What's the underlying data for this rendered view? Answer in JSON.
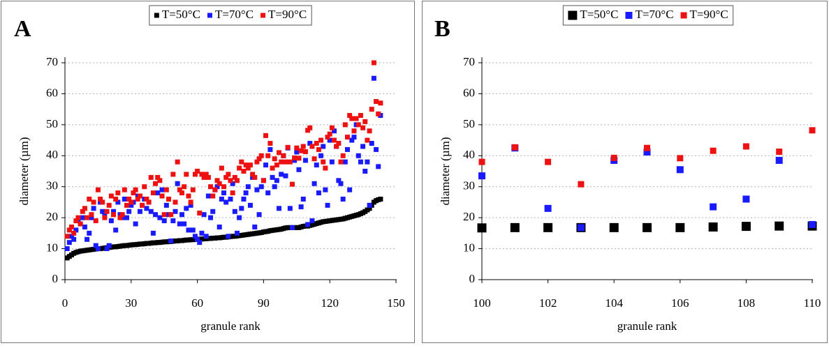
{
  "chart_data": [
    {
      "type": "scatter",
      "panel_label": "A",
      "xlabel": "granule rank",
      "ylabel": "diameter (µm)",
      "xlim": [
        0,
        150
      ],
      "xticks": [
        0,
        30,
        60,
        90,
        120,
        150
      ],
      "ylim": [
        0,
        70
      ],
      "yticks": [
        0,
        10,
        20,
        30,
        40,
        50,
        60,
        70
      ],
      "grid": true,
      "legend": "top",
      "x": [
        1,
        2,
        3,
        4,
        5,
        6,
        7,
        8,
        9,
        10,
        11,
        12,
        13,
        14,
        15,
        16,
        17,
        18,
        19,
        20,
        21,
        22,
        23,
        24,
        25,
        26,
        27,
        28,
        29,
        30,
        31,
        32,
        33,
        34,
        35,
        36,
        37,
        38,
        39,
        40,
        41,
        42,
        43,
        44,
        45,
        46,
        47,
        48,
        49,
        50,
        51,
        52,
        53,
        54,
        55,
        56,
        57,
        58,
        59,
        60,
        61,
        62,
        63,
        64,
        65,
        66,
        67,
        68,
        69,
        70,
        71,
        72,
        73,
        74,
        75,
        76,
        77,
        78,
        79,
        80,
        81,
        82,
        83,
        84,
        85,
        86,
        87,
        88,
        89,
        90,
        91,
        92,
        93,
        94,
        95,
        96,
        97,
        98,
        99,
        100,
        101,
        102,
        103,
        104,
        105,
        106,
        107,
        108,
        109,
        110,
        111,
        112,
        113,
        114,
        115,
        116,
        117,
        118,
        119,
        120,
        121,
        122,
        123,
        124,
        125,
        126,
        127,
        128,
        129,
        130,
        131,
        132,
        133,
        134,
        135,
        136,
        137,
        138,
        139,
        140,
        141,
        142,
        143
      ],
      "series": [
        {
          "name": "T=50°C",
          "color": "#000000",
          "values": [
            7.0,
            7.5,
            8.0,
            8.5,
            8.8,
            9.0,
            9.2,
            9.3,
            9.4,
            9.5,
            9.6,
            9.7,
            9.8,
            9.9,
            10.0,
            10.0,
            10.1,
            10.2,
            10.3,
            10.4,
            10.5,
            10.6,
            10.6,
            10.7,
            10.8,
            10.9,
            11.0,
            11.0,
            11.1,
            11.2,
            11.3,
            11.3,
            11.4,
            11.5,
            11.5,
            11.6,
            11.7,
            11.7,
            11.8,
            11.9,
            11.9,
            12.0,
            12.0,
            12.1,
            12.2,
            12.2,
            12.3,
            12.3,
            12.4,
            12.5,
            12.5,
            12.6,
            12.6,
            12.7,
            12.8,
            12.8,
            12.9,
            12.9,
            13.0,
            13.0,
            13.1,
            13.1,
            13.2,
            13.2,
            13.3,
            13.3,
            13.4,
            13.4,
            13.5,
            13.5,
            13.6,
            13.7,
            13.7,
            13.8,
            13.9,
            14.0,
            14.0,
            14.1,
            14.2,
            14.3,
            14.4,
            14.5,
            14.6,
            14.7,
            14.8,
            14.9,
            15.0,
            15.1,
            15.2,
            15.4,
            15.5,
            15.6,
            15.8,
            15.9,
            16.0,
            16.1,
            16.2,
            16.3,
            16.5,
            16.7,
            16.8,
            16.8,
            16.8,
            16.8,
            16.8,
            16.8,
            17.0,
            17.2,
            17.3,
            17.3,
            17.5,
            17.7,
            17.9,
            18.1,
            18.3,
            18.5,
            18.7,
            18.8,
            18.9,
            19.0,
            19.1,
            19.2,
            19.3,
            19.4,
            19.5,
            19.6,
            19.8,
            20.0,
            20.2,
            20.4,
            20.6,
            20.8,
            21.0,
            21.3,
            21.6,
            22.0,
            22.5,
            23.0,
            24.0,
            25.0,
            25.5,
            25.8,
            26.0
          ]
        },
        {
          "name": "T=70°C",
          "color": "#1a1aff",
          "values": [
            10,
            12,
            14,
            13,
            16,
            19,
            18,
            20,
            17,
            13,
            15,
            20,
            23,
            11,
            10,
            25,
            22,
            21,
            10,
            11,
            19,
            22,
            16,
            25,
            21,
            20,
            26,
            20,
            22,
            24,
            25,
            18,
            27,
            22,
            24,
            26,
            23,
            25,
            22,
            15,
            21,
            28,
            20,
            29,
            19,
            24,
            21,
            12.5,
            19,
            22,
            31,
            18,
            21,
            18,
            23,
            16,
            24,
            16,
            14,
            13,
            12,
            15,
            21,
            14,
            27,
            20,
            22,
            29,
            30,
            17,
            26,
            28,
            25,
            14,
            26,
            31,
            22,
            15,
            20,
            23,
            26,
            28,
            30,
            24,
            33,
            17,
            29,
            21,
            30,
            32,
            37,
            28,
            42,
            33,
            30,
            32,
            23,
            34,
            40,
            33.5,
            42.5,
            23,
            16.8,
            38.5,
            41.2,
            35.5,
            23.5,
            26,
            38.5,
            17.8,
            44,
            19,
            31,
            37,
            28,
            40,
            43,
            29,
            24,
            45,
            38,
            48,
            43,
            32,
            31,
            26,
            38,
            42,
            29,
            45,
            46,
            50,
            40,
            38,
            43,
            35,
            38,
            24,
            44,
            65,
            42,
            36.5,
            53
          ]
        },
        {
          "name": "T=90°C",
          "color": "#ee1111",
          "values": [
            14,
            16,
            17,
            15,
            19,
            20,
            18,
            22,
            23,
            20,
            26,
            21,
            25,
            19,
            29,
            26,
            25,
            20,
            22,
            24,
            27,
            21,
            26,
            28,
            20,
            21,
            29,
            24,
            26,
            25,
            28,
            29,
            26,
            27,
            24,
            30,
            26,
            25,
            33,
            28,
            31,
            33,
            32,
            27,
            21,
            29,
            26,
            21,
            34,
            25,
            38,
            29,
            28,
            30,
            34,
            27,
            25,
            29,
            34,
            35,
            21.5,
            34,
            33,
            34,
            33,
            30,
            27,
            29,
            32,
            31,
            36,
            30,
            33,
            34,
            32,
            28,
            33,
            32,
            36,
            38,
            35,
            37,
            36,
            37,
            34,
            33,
            38,
            39,
            40,
            32,
            46.5,
            40,
            44,
            36,
            39,
            37,
            41,
            38,
            40,
            38,
            42.7,
            38,
            30.8,
            39.3,
            42.5,
            39.2,
            41.6,
            43,
            41.3,
            48.2,
            49,
            43,
            39,
            44,
            42,
            45,
            38,
            36,
            46,
            47,
            49,
            45,
            43,
            44,
            38,
            40,
            50,
            46,
            53,
            52,
            48,
            52,
            50,
            53,
            49,
            51,
            45,
            48,
            55,
            70,
            57.5,
            53.5,
            57
          ]
        }
      ]
    },
    {
      "type": "scatter",
      "panel_label": "B",
      "xlabel": "granule rank",
      "ylabel": "diameter (µm)",
      "xlim": [
        100,
        110
      ],
      "xticks": [
        100,
        102,
        104,
        106,
        108,
        110
      ],
      "ylim": [
        0,
        70
      ],
      "yticks": [
        0,
        10,
        20,
        30,
        40,
        50,
        60,
        70
      ],
      "grid": true,
      "legend": "top",
      "x": [
        100,
        101,
        102,
        103,
        104,
        105,
        106,
        107,
        108,
        109,
        110
      ],
      "series": [
        {
          "name": "T=50°C",
          "color": "#000000",
          "values": [
            16.7,
            16.8,
            16.8,
            16.8,
            16.8,
            16.8,
            16.8,
            17.0,
            17.2,
            17.3,
            17.3
          ]
        },
        {
          "name": "T=70°C",
          "color": "#1a1aff",
          "values": [
            33.5,
            42.5,
            23,
            16.8,
            38.5,
            41.2,
            35.5,
            23.5,
            26,
            38.5,
            17.8
          ]
        },
        {
          "name": "T=90°C",
          "color": "#ee1111",
          "values": [
            38,
            42.7,
            38,
            30.8,
            39.3,
            42.5,
            39.2,
            41.6,
            43,
            41.3,
            48.2
          ]
        }
      ]
    }
  ]
}
